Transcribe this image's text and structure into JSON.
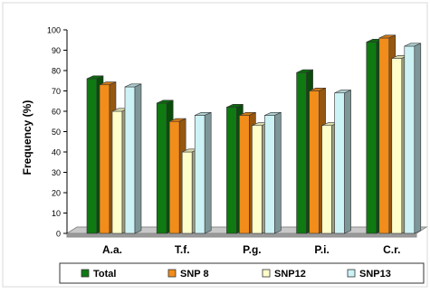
{
  "chart_data": {
    "type": "bar",
    "categories": [
      "A.a.",
      "T.f.",
      "P.g.",
      "P.i.",
      "C.r."
    ],
    "series": [
      {
        "name": "Total",
        "values": [
          76,
          64,
          62,
          79,
          94
        ],
        "color": "#0f7a12"
      },
      {
        "name": "SNP 8",
        "values": [
          73,
          55,
          58,
          70,
          96
        ],
        "color": "#f28c1a"
      },
      {
        "name": "SNP12",
        "values": [
          60,
          40,
          53,
          53,
          86
        ],
        "color": "#ffffcc"
      },
      {
        "name": "SNP13",
        "values": [
          72,
          58,
          58,
          69,
          92
        ],
        "color": "#ccf2f5"
      }
    ],
    "ylabel": "Frequency (%)",
    "ylim": [
      0,
      100
    ],
    "yticks": [
      0,
      10,
      20,
      30,
      40,
      50,
      60,
      70,
      80,
      90,
      100
    ],
    "legend_position": "bottom",
    "style": "3d-bar",
    "grid": false
  }
}
